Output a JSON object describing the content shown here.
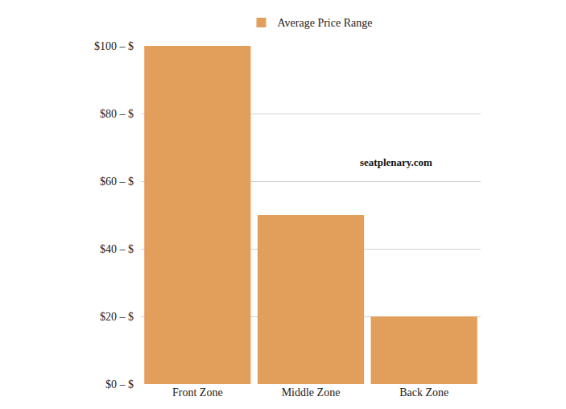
{
  "chart_data": {
    "type": "bar",
    "categories": [
      "Front Zone",
      "Middle Zone",
      "Back Zone"
    ],
    "series": [
      {
        "name": "Average Price Range",
        "color": "#e29f5b",
        "values": [
          100,
          50,
          20
        ]
      }
    ],
    "ylim": [
      0,
      100
    ],
    "yticks": [
      {
        "value": 0,
        "label": "$0 – $"
      },
      {
        "value": 20,
        "label": "$20 – $"
      },
      {
        "value": 40,
        "label": "$40 – $"
      },
      {
        "value": 60,
        "label": "$60 – $"
      },
      {
        "value": 80,
        "label": "$80 – $"
      },
      {
        "value": 100,
        "label": "$100 – $"
      }
    ],
    "grid": true,
    "legend": "top",
    "annotations": [
      "seatplenary.com"
    ]
  }
}
